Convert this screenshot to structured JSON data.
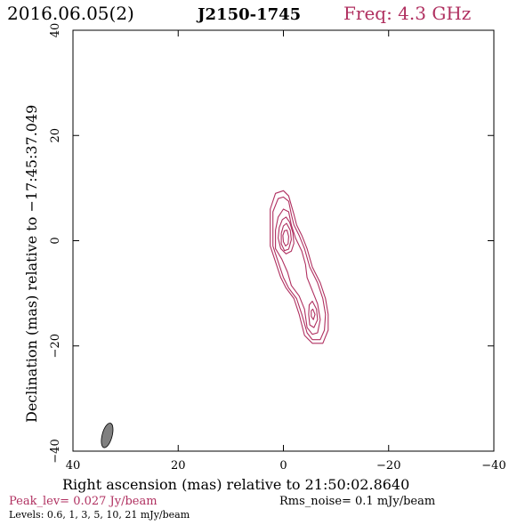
{
  "header": {
    "date": "2016.06.05(2)",
    "source": "J2150-1745",
    "freq": "Freq: 4.3 GHz"
  },
  "footer": {
    "peak": "Peak_lev=  0.027 Jy/beam",
    "rms": "Rms_noise=  0.1 mJy/beam",
    "levels": "Levels: 0.6,   1,   3,   5,  10,  21 mJy/beam"
  },
  "colors": {
    "accent": "#b03060",
    "beam": "#808080",
    "axis": "#000000"
  },
  "chart_data": {
    "type": "contour",
    "xlabel": "Right ascension (mas) relative to 21:50:02.8640",
    "ylabel": "Declination (mas) relative to −17:45:37.049",
    "xlim": [
      40,
      -40
    ],
    "ylim": [
      -40,
      40
    ],
    "xticks": [
      {
        "value": 40,
        "label": "40"
      },
      {
        "value": 20,
        "label": "20"
      },
      {
        "value": 0,
        "label": "0"
      },
      {
        "value": -20,
        "label": "−20"
      },
      {
        "value": -40,
        "label": "−40"
      }
    ],
    "yticks": [
      {
        "value": -40,
        "label": "−40"
      },
      {
        "value": -20,
        "label": "−20"
      },
      {
        "value": 0,
        "label": "0"
      },
      {
        "value": 20,
        "label": "20"
      },
      {
        "value": 40,
        "label": "40"
      }
    ],
    "beam": {
      "x": 33.5,
      "y": -37,
      "major_mas": 4.8,
      "minor_mas": 1.9,
      "pa_deg": 15
    },
    "levels_mJy": [
      0.6,
      1,
      3,
      5,
      10,
      21
    ],
    "peak_Jy_per_beam": 0.027,
    "rms_mJy_per_beam": 0.1,
    "contours": [
      {
        "level": 0.6,
        "points": [
          [
            1.5,
            9
          ],
          [
            0,
            9.5
          ],
          [
            -1,
            8.5
          ],
          [
            -2,
            5
          ],
          [
            -2.5,
            3
          ],
          [
            -3.5,
            1
          ],
          [
            -4.5,
            -1.5
          ],
          [
            -5.5,
            -5
          ],
          [
            -7,
            -8
          ],
          [
            -8,
            -11
          ],
          [
            -8.5,
            -14
          ],
          [
            -8.5,
            -17
          ],
          [
            -7.5,
            -19.5
          ],
          [
            -5.5,
            -19.5
          ],
          [
            -4,
            -18
          ],
          [
            -3,
            -14
          ],
          [
            -2,
            -11
          ],
          [
            -0.5,
            -9
          ],
          [
            0.5,
            -7
          ],
          [
            1.5,
            -4
          ],
          [
            2.5,
            -1
          ],
          [
            2.5,
            2
          ],
          [
            2.5,
            6
          ]
        ]
      },
      {
        "level": 1,
        "points": [
          [
            1,
            8
          ],
          [
            0,
            8.3
          ],
          [
            -1,
            7.5
          ],
          [
            -1.5,
            5
          ],
          [
            -2,
            3
          ],
          [
            -3,
            1
          ],
          [
            -4,
            -1.5
          ],
          [
            -5,
            -5
          ],
          [
            -6.5,
            -8
          ],
          [
            -7.5,
            -11
          ],
          [
            -8,
            -14
          ],
          [
            -7.8,
            -17
          ],
          [
            -7,
            -18.8
          ],
          [
            -5.5,
            -18.8
          ],
          [
            -4.5,
            -17.5
          ],
          [
            -3.5,
            -14
          ],
          [
            -2.5,
            -11
          ],
          [
            -1,
            -9
          ],
          [
            0,
            -7
          ],
          [
            1,
            -4
          ],
          [
            2,
            -1
          ],
          [
            2,
            2
          ],
          [
            2,
            5.5
          ]
        ]
      },
      {
        "level": 3,
        "points": [
          [
            0,
            6
          ],
          [
            -1,
            5.5
          ],
          [
            -1.5,
            3
          ],
          [
            -2.3,
            0.5
          ],
          [
            -3.5,
            -2
          ],
          [
            -4.2,
            -4.5
          ],
          [
            -4.5,
            -7
          ],
          [
            -5.5,
            -9.5
          ],
          [
            -6.5,
            -12
          ],
          [
            -7,
            -15
          ],
          [
            -6.5,
            -17.5
          ],
          [
            -5.5,
            -17.8
          ],
          [
            -4.5,
            -16.5
          ],
          [
            -4,
            -13
          ],
          [
            -3,
            -10.5
          ],
          [
            -1.5,
            -8.5
          ],
          [
            -0.8,
            -6
          ],
          [
            0.3,
            -3.5
          ],
          [
            1.5,
            -1.5
          ],
          [
            1.5,
            2
          ],
          [
            1,
            4.5
          ]
        ]
      },
      {
        "level": 5,
        "points": [
          [
            -0.5,
            4.5
          ],
          [
            -1.2,
            3.5
          ],
          [
            -1.8,
            1.5
          ],
          [
            -2,
            -0.5
          ],
          [
            -1.5,
            -2
          ],
          [
            -0.5,
            -2.5
          ],
          [
            0.5,
            -1.5
          ],
          [
            1,
            0.5
          ],
          [
            0.8,
            2.5
          ],
          [
            0.2,
            4
          ]
        ]
      },
      {
        "level": 5,
        "points": [
          [
            -5.5,
            -11.5
          ],
          [
            -6.3,
            -13
          ],
          [
            -6.5,
            -15
          ],
          [
            -5.8,
            -16.5
          ],
          [
            -5,
            -16
          ],
          [
            -4.8,
            -14
          ],
          [
            -4.9,
            -12.2
          ]
        ]
      },
      {
        "level": 10,
        "points": [
          [
            -0.6,
            3.3
          ],
          [
            -1.3,
            2
          ],
          [
            -1.5,
            0.2
          ],
          [
            -1,
            -1.6
          ],
          [
            -0.2,
            -1.9
          ],
          [
            0.4,
            -0.6
          ],
          [
            0.4,
            1.4
          ],
          [
            0,
            2.8
          ]
        ]
      },
      {
        "level": 21,
        "points": [
          [
            -0.7,
            2
          ],
          [
            -1,
            0.8
          ],
          [
            -0.9,
            -0.6
          ],
          [
            -0.4,
            -1
          ],
          [
            0,
            -0.2
          ],
          [
            0.1,
            1
          ],
          [
            -0.2,
            1.9
          ]
        ]
      },
      {
        "level": 10,
        "points": [
          [
            -5.6,
            -13
          ],
          [
            -6,
            -14
          ],
          [
            -5.7,
            -15
          ],
          [
            -5.3,
            -14.4
          ],
          [
            -5.3,
            -13.3
          ]
        ]
      }
    ]
  }
}
